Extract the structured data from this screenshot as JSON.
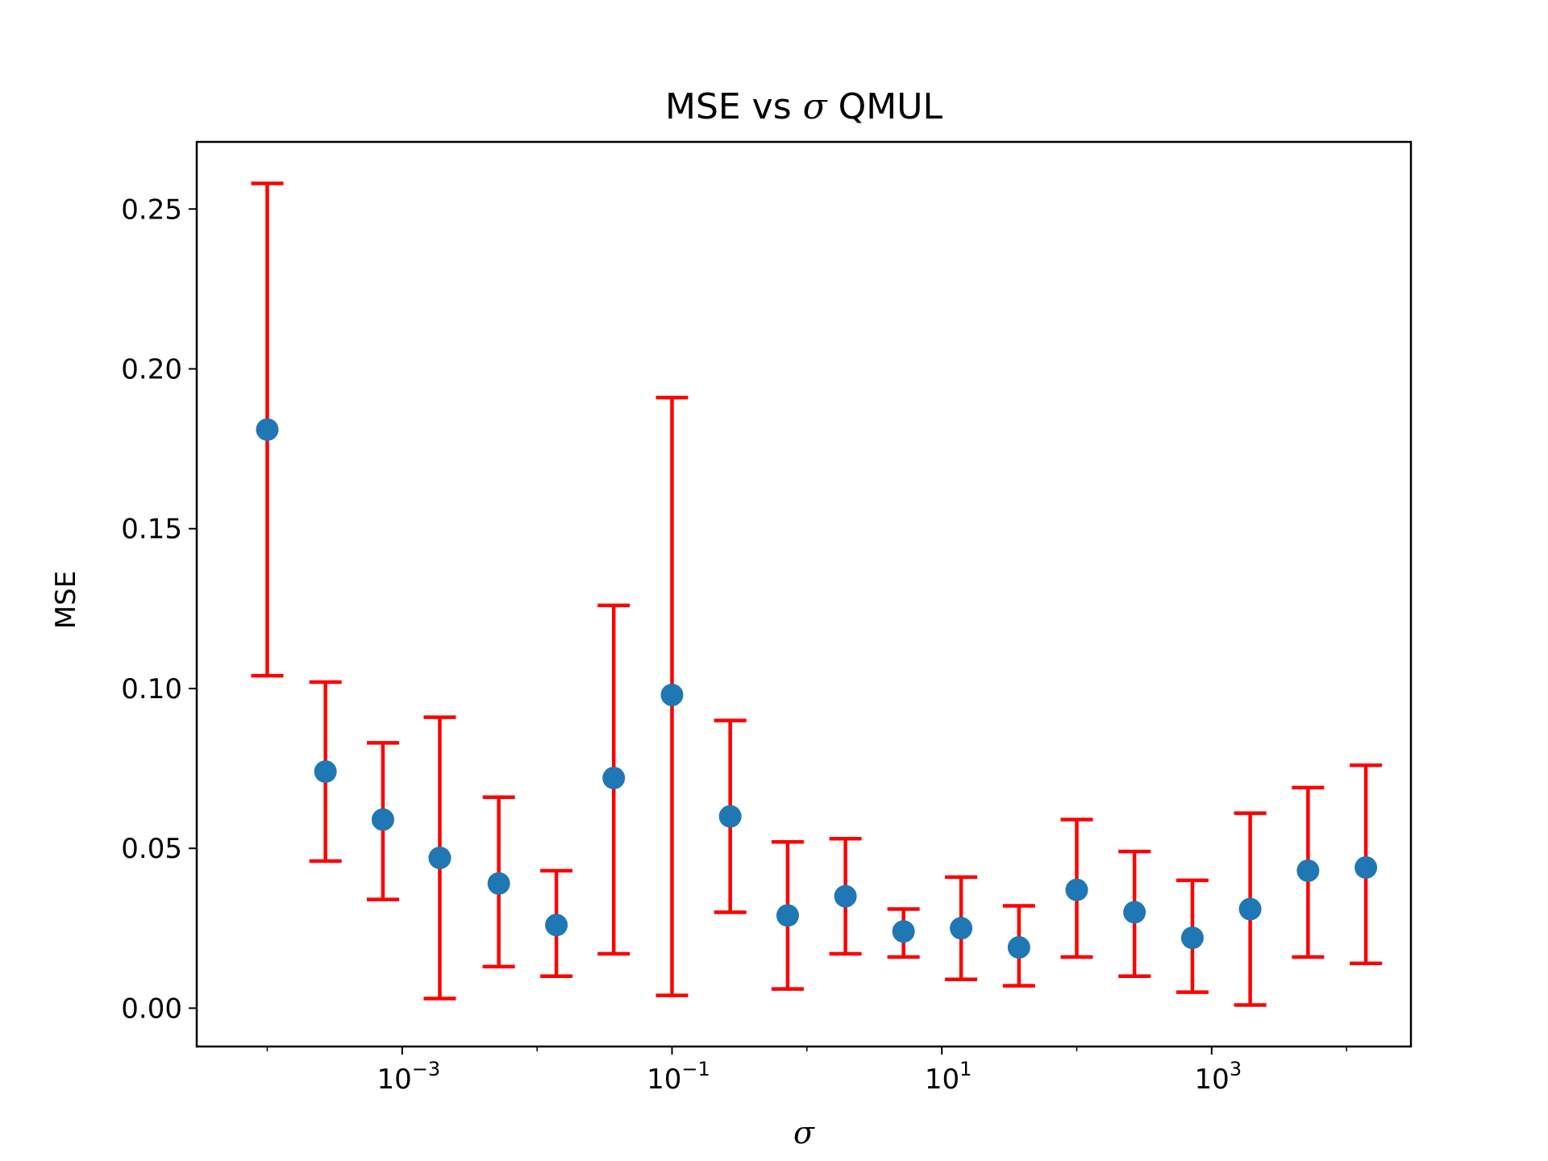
{
  "chart_data": {
    "type": "scatter",
    "title": "MSE vs σ QMUL",
    "title_parts": [
      "MSE vs ",
      "σ",
      " QMUL"
    ],
    "xlabel": "σ",
    "ylabel": "MSE",
    "xscale": "log",
    "xlim": [
      3e-05,
      30000
    ],
    "ylim": [
      -0.012,
      0.271
    ],
    "grid": false,
    "legend": "none",
    "x_ticks": [
      {
        "base": "10",
        "exp": "−3",
        "value": 0.001
      },
      {
        "base": "10",
        "exp": "−1",
        "value": 0.1
      },
      {
        "base": "10",
        "exp": "1",
        "value": 10
      },
      {
        "base": "10",
        "exp": "3",
        "value": 1000
      }
    ],
    "y_ticks": [
      "0.00",
      "0.05",
      "0.10",
      "0.15",
      "0.20",
      "0.25"
    ],
    "y_tick_values": [
      0.0,
      0.05,
      0.1,
      0.15,
      0.2,
      0.25
    ],
    "marker_color": "#1f77b4",
    "errorbar_color": "#ff0000",
    "points": [
      {
        "x": 0.0001,
        "y": 0.181,
        "lower": 0.104,
        "upper": 0.258
      },
      {
        "x": 0.00027,
        "y": 0.074,
        "lower": 0.046,
        "upper": 0.102
      },
      {
        "x": 0.00072,
        "y": 0.059,
        "lower": 0.034,
        "upper": 0.083
      },
      {
        "x": 0.0019,
        "y": 0.047,
        "lower": 0.003,
        "upper": 0.091
      },
      {
        "x": 0.0052,
        "y": 0.039,
        "lower": 0.013,
        "upper": 0.066
      },
      {
        "x": 0.0139,
        "y": 0.026,
        "lower": 0.01,
        "upper": 0.043
      },
      {
        "x": 0.037,
        "y": 0.072,
        "lower": 0.017,
        "upper": 0.126
      },
      {
        "x": 0.1,
        "y": 0.098,
        "lower": 0.004,
        "upper": 0.191
      },
      {
        "x": 0.27,
        "y": 0.06,
        "lower": 0.03,
        "upper": 0.09
      },
      {
        "x": 0.72,
        "y": 0.029,
        "lower": 0.006,
        "upper": 0.052
      },
      {
        "x": 1.93,
        "y": 0.035,
        "lower": 0.017,
        "upper": 0.053
      },
      {
        "x": 5.2,
        "y": 0.024,
        "lower": 0.016,
        "upper": 0.031
      },
      {
        "x": 13.9,
        "y": 0.025,
        "lower": 0.009,
        "upper": 0.041
      },
      {
        "x": 37.3,
        "y": 0.019,
        "lower": 0.007,
        "upper": 0.032
      },
      {
        "x": 100,
        "y": 0.037,
        "lower": 0.016,
        "upper": 0.059
      },
      {
        "x": 268,
        "y": 0.03,
        "lower": 0.01,
        "upper": 0.049
      },
      {
        "x": 720,
        "y": 0.022,
        "lower": 0.005,
        "upper": 0.04
      },
      {
        "x": 1930,
        "y": 0.031,
        "lower": 0.001,
        "upper": 0.061
      },
      {
        "x": 5180,
        "y": 0.043,
        "lower": 0.016,
        "upper": 0.069
      },
      {
        "x": 13900,
        "y": 0.044,
        "lower": 0.014,
        "upper": 0.076
      }
    ]
  }
}
